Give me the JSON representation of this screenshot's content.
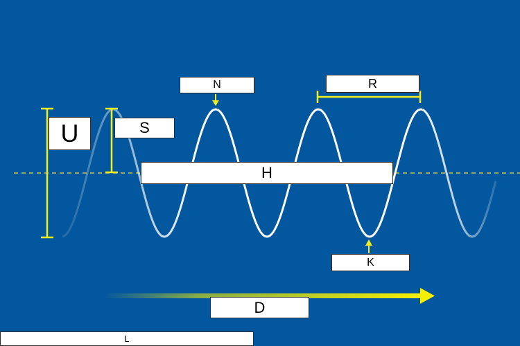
{
  "labels": {
    "u": "U",
    "s": "S",
    "n": "N",
    "r": "R",
    "h": "H",
    "k": "K",
    "d": "D",
    "l": "L"
  },
  "colors": {
    "background": "#03579e",
    "wave": "#ffffff",
    "marker": "#f2ee1d",
    "baseline": "#d6d94a"
  }
}
